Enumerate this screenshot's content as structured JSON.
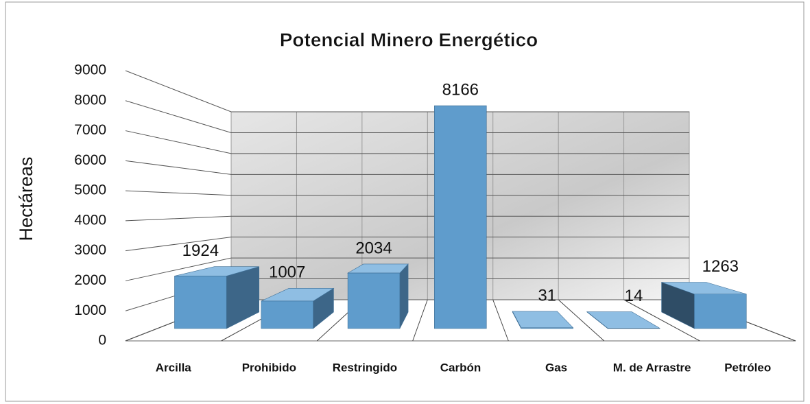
{
  "chart_data": {
    "type": "bar3d",
    "title": "Potencial Minero Energético",
    "y_label": "Hectáreas",
    "categories": [
      "Arcilla",
      "Prohibido",
      "Restringido",
      "Carbón",
      "Gas",
      "M. de Arrastre",
      "Petróleo"
    ],
    "values": [
      1924,
      1007,
      2034,
      8166,
      31,
      14,
      1263
    ],
    "color": "#5f9ccc",
    "ylim": [
      0,
      9000
    ],
    "yticks": [
      0,
      1000,
      2000,
      3000,
      4000,
      5000,
      6000,
      7000,
      8000,
      9000
    ],
    "grid": true
  }
}
